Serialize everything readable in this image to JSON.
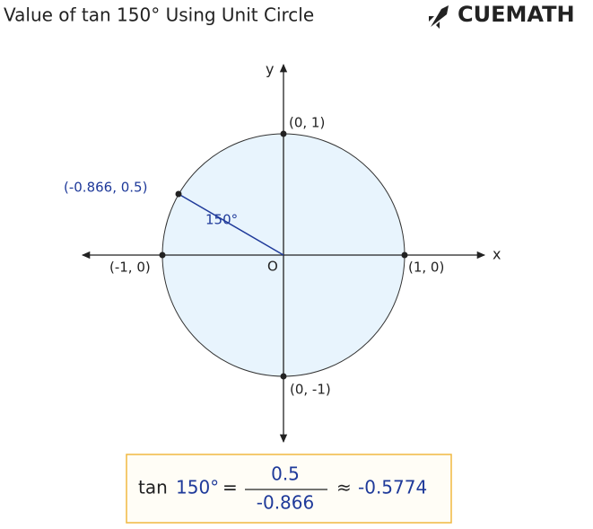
{
  "header": {
    "title": "Value of tan 150° Using Unit Circle",
    "logo": "CUEMATH"
  },
  "diagram": {
    "x_axis_label": "x",
    "y_axis_label": "y",
    "origin_label": "O",
    "points": [
      {
        "label": "(0, 1)"
      },
      {
        "label": "(-0.866, 0.5)"
      },
      {
        "label": "(-1, 0)"
      },
      {
        "label": "(1, 0)"
      },
      {
        "label": "(0, -1)"
      }
    ],
    "angle_label": "150°"
  },
  "formula": {
    "function": "tan",
    "angle": "150°",
    "equals": "=",
    "numerator": "0.5",
    "denominator": "-0.866",
    "approx": "≈",
    "result": "-0.5774"
  }
}
